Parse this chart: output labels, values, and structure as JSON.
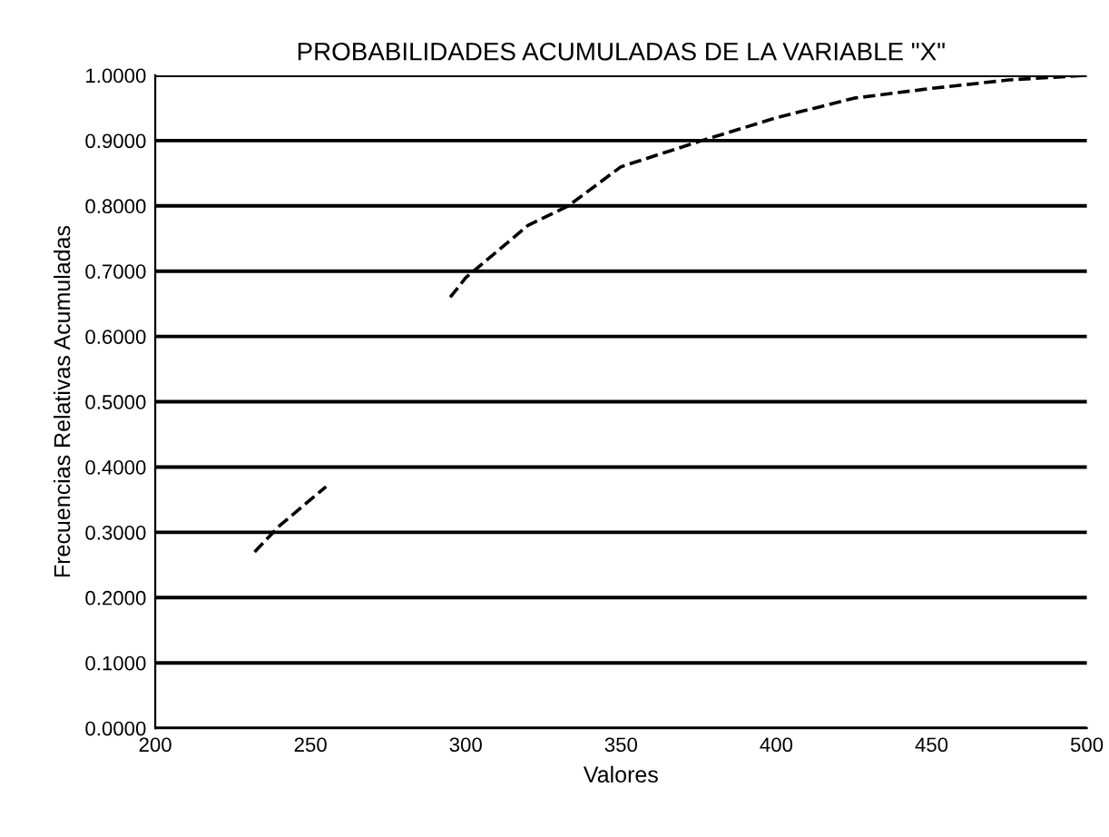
{
  "chart_data": {
    "type": "line",
    "title": "PROBABILIDADES ACUMULADAS DE LA VARIABLE \"X\"",
    "xlabel": "Valores",
    "ylabel": "Frecuencias Relativas Acumuladas",
    "x": [
      232,
      240,
      250,
      255,
      275,
      295,
      300,
      310,
      320,
      333,
      350,
      376,
      400,
      425,
      450,
      475,
      500
    ],
    "series": [
      {
        "color": "#000000",
        "values": [
          0.27,
          0.31,
          0.35,
          0.37,
          null,
          0.66,
          0.69,
          0.73,
          0.77,
          0.8,
          0.86,
          0.9,
          0.935,
          0.965,
          0.98,
          0.993,
          1.0
        ]
      }
    ],
    "xlim": [
      200,
      500
    ],
    "xticks": [
      200,
      250,
      300,
      350,
      400,
      450,
      500
    ],
    "ylim": [
      0,
      1
    ],
    "yticks": [
      {
        "value": 0,
        "label": "0.0000"
      },
      {
        "value": 0.1,
        "label": "0.1000"
      },
      {
        "value": 0.2,
        "label": "0.2000"
      },
      {
        "value": 0.3,
        "label": "0.3000"
      },
      {
        "value": 0.4,
        "label": "0.4000"
      },
      {
        "value": 0.5,
        "label": "0.5000"
      },
      {
        "value": 0.6,
        "label": "0.6000"
      },
      {
        "value": 0.7,
        "label": "0.7000"
      },
      {
        "value": 0.8,
        "label": "0.8000"
      },
      {
        "value": 0.9,
        "label": "0.9000"
      },
      {
        "value": 1,
        "label": "1.0000"
      }
    ],
    "grid": "y",
    "line_style": "dashed",
    "marker": "none"
  }
}
